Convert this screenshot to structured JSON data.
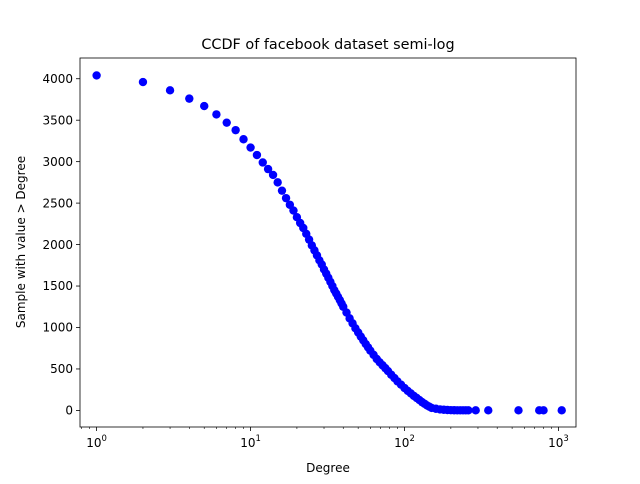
{
  "chart_data": {
    "type": "scatter",
    "title": "CCDF of facebook dataset semi-log",
    "xlabel": "Degree",
    "ylabel": "Sample with value > Degree",
    "xscale": "log",
    "xlim": [
      0.78,
      1300
    ],
    "ylim": [
      -200,
      4250
    ],
    "x_ticks": [
      {
        "value": 1,
        "base": "10",
        "exp": "0"
      },
      {
        "value": 10,
        "base": "10",
        "exp": "1"
      },
      {
        "value": 100,
        "base": "10",
        "exp": "2"
      },
      {
        "value": 1000,
        "base": "10",
        "exp": "3"
      }
    ],
    "y_ticks": [
      "0",
      "500",
      "1000",
      "1500",
      "2000",
      "2500",
      "3000",
      "3500",
      "4000"
    ],
    "grid": false,
    "legend": "none",
    "marker_color": "#0000ff",
    "series": [
      {
        "x": [
          1,
          2,
          3,
          4,
          5,
          6,
          7,
          8,
          9,
          10,
          11,
          12,
          13,
          14,
          15,
          16,
          17,
          18,
          19,
          20,
          21,
          22,
          23,
          24,
          25,
          26,
          27,
          28,
          29,
          30,
          31,
          32,
          33,
          34,
          35,
          36,
          37,
          38,
          39,
          40,
          42,
          44,
          46,
          48,
          50,
          52,
          54,
          56,
          58,
          60,
          63,
          66,
          69,
          72,
          75,
          78,
          82,
          86,
          90,
          95,
          100,
          105,
          110,
          115,
          120,
          125,
          130,
          135,
          140,
          145,
          150,
          160,
          170,
          180,
          190,
          200,
          210,
          220,
          230,
          240,
          250,
          260,
          290,
          350,
          550,
          750,
          800,
          1050
        ],
        "y": [
          4040,
          3960,
          3860,
          3760,
          3670,
          3570,
          3470,
          3380,
          3270,
          3170,
          3080,
          2990,
          2910,
          2840,
          2750,
          2650,
          2560,
          2480,
          2410,
          2330,
          2260,
          2200,
          2130,
          2060,
          1990,
          1930,
          1870,
          1810,
          1760,
          1700,
          1650,
          1600,
          1550,
          1500,
          1450,
          1410,
          1370,
          1330,
          1290,
          1250,
          1180,
          1110,
          1050,
          990,
          940,
          890,
          845,
          800,
          760,
          720,
          670,
          620,
          580,
          545,
          510,
          475,
          430,
          390,
          350,
          310,
          270,
          235,
          205,
          175,
          150,
          125,
          100,
          80,
          60,
          45,
          30,
          20,
          12,
          8,
          5,
          3,
          2,
          1,
          1,
          1,
          1,
          1,
          1,
          1,
          1,
          1,
          1,
          1
        ]
      }
    ]
  }
}
